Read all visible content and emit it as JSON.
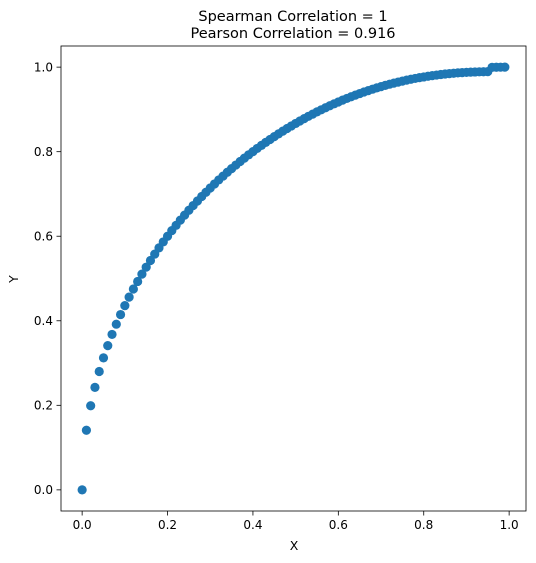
{
  "chart_data": {
    "type": "scatter",
    "title": [
      "Spearman Correlation = 1",
      "Pearson Correlation = 0.916"
    ],
    "xlabel": "X",
    "ylabel": "Y",
    "xlim": [
      -0.0495,
      1.0395
    ],
    "ylim": [
      -0.05,
      1.05
    ],
    "grid": false,
    "x_ticks": [
      0.0,
      0.2,
      0.4,
      0.6,
      0.8,
      1.0
    ],
    "x_tick_labels": [
      "0.0",
      "0.2",
      "0.4",
      "0.6",
      "0.8",
      "1.0"
    ],
    "y_ticks": [
      0.0,
      0.2,
      0.4,
      0.6,
      0.8,
      1.0
    ],
    "y_tick_labels": [
      "0.0",
      "0.2",
      "0.4",
      "0.6",
      "0.8",
      "1.0"
    ],
    "series": [
      {
        "color": "#1f77b4",
        "x": [
          0.0,
          0.01,
          0.02,
          0.03,
          0.04,
          0.05,
          0.06,
          0.07,
          0.08,
          0.09,
          0.1,
          0.11,
          0.12,
          0.13,
          0.14,
          0.15,
          0.16,
          0.17,
          0.18,
          0.19,
          0.2,
          0.21,
          0.22,
          0.23,
          0.24,
          0.25,
          0.26,
          0.27,
          0.28,
          0.29,
          0.3,
          0.31,
          0.32,
          0.33,
          0.34,
          0.35,
          0.36,
          0.37,
          0.38,
          0.39,
          0.4,
          0.41,
          0.42,
          0.43,
          0.44,
          0.45,
          0.46,
          0.47,
          0.48,
          0.49,
          0.5,
          0.51,
          0.52,
          0.53,
          0.54,
          0.55,
          0.56,
          0.57,
          0.58,
          0.59,
          0.6,
          0.61,
          0.62,
          0.63,
          0.64,
          0.65,
          0.66,
          0.67,
          0.68,
          0.69,
          0.7,
          0.71,
          0.72,
          0.73,
          0.74,
          0.75,
          0.76,
          0.77,
          0.78,
          0.79,
          0.8,
          0.81,
          0.82,
          0.83,
          0.84,
          0.85,
          0.86,
          0.87,
          0.88,
          0.89,
          0.9,
          0.91,
          0.92,
          0.93,
          0.94,
          0.95,
          0.96,
          0.97,
          0.98,
          0.99
        ],
        "y": [
          0.0,
          0.1411,
          0.199,
          0.2425,
          0.28,
          0.3122,
          0.3412,
          0.3677,
          0.3919,
          0.4147,
          0.4359,
          0.456,
          0.4751,
          0.493,
          0.5103,
          0.5268,
          0.5426,
          0.5578,
          0.5724,
          0.5865,
          0.6,
          0.6132,
          0.6258,
          0.638,
          0.6499,
          0.6614,
          0.6726,
          0.6834,
          0.6939,
          0.7041,
          0.7141,
          0.7237,
          0.7332,
          0.7423,
          0.7513,
          0.7599,
          0.7684,
          0.7767,
          0.7847,
          0.7926,
          0.8002,
          0.8077,
          0.8149,
          0.822,
          0.8289,
          0.8357,
          0.8422,
          0.8486,
          0.8548,
          0.8609,
          0.8668,
          0.8726,
          0.8782,
          0.8837,
          0.8889,
          0.8941,
          0.8991,
          0.9039,
          0.9086,
          0.9132,
          0.9176,
          0.9219,
          0.926,
          0.93,
          0.9338,
          0.9375,
          0.9411,
          0.9445,
          0.9478,
          0.9509,
          0.9539,
          0.9568,
          0.9596,
          0.9621,
          0.9646,
          0.967,
          0.9692,
          0.9713,
          0.9733,
          0.9751,
          0.9768,
          0.9784,
          0.9799,
          0.9813,
          0.9825,
          0.9837,
          0.9847,
          0.9856,
          0.9864,
          0.9871,
          0.9877,
          0.9882,
          0.9886,
          0.9889,
          0.9891,
          0.9893,
          0.9994,
          0.9998,
          0.9999,
          1.0
        ]
      }
    ]
  }
}
